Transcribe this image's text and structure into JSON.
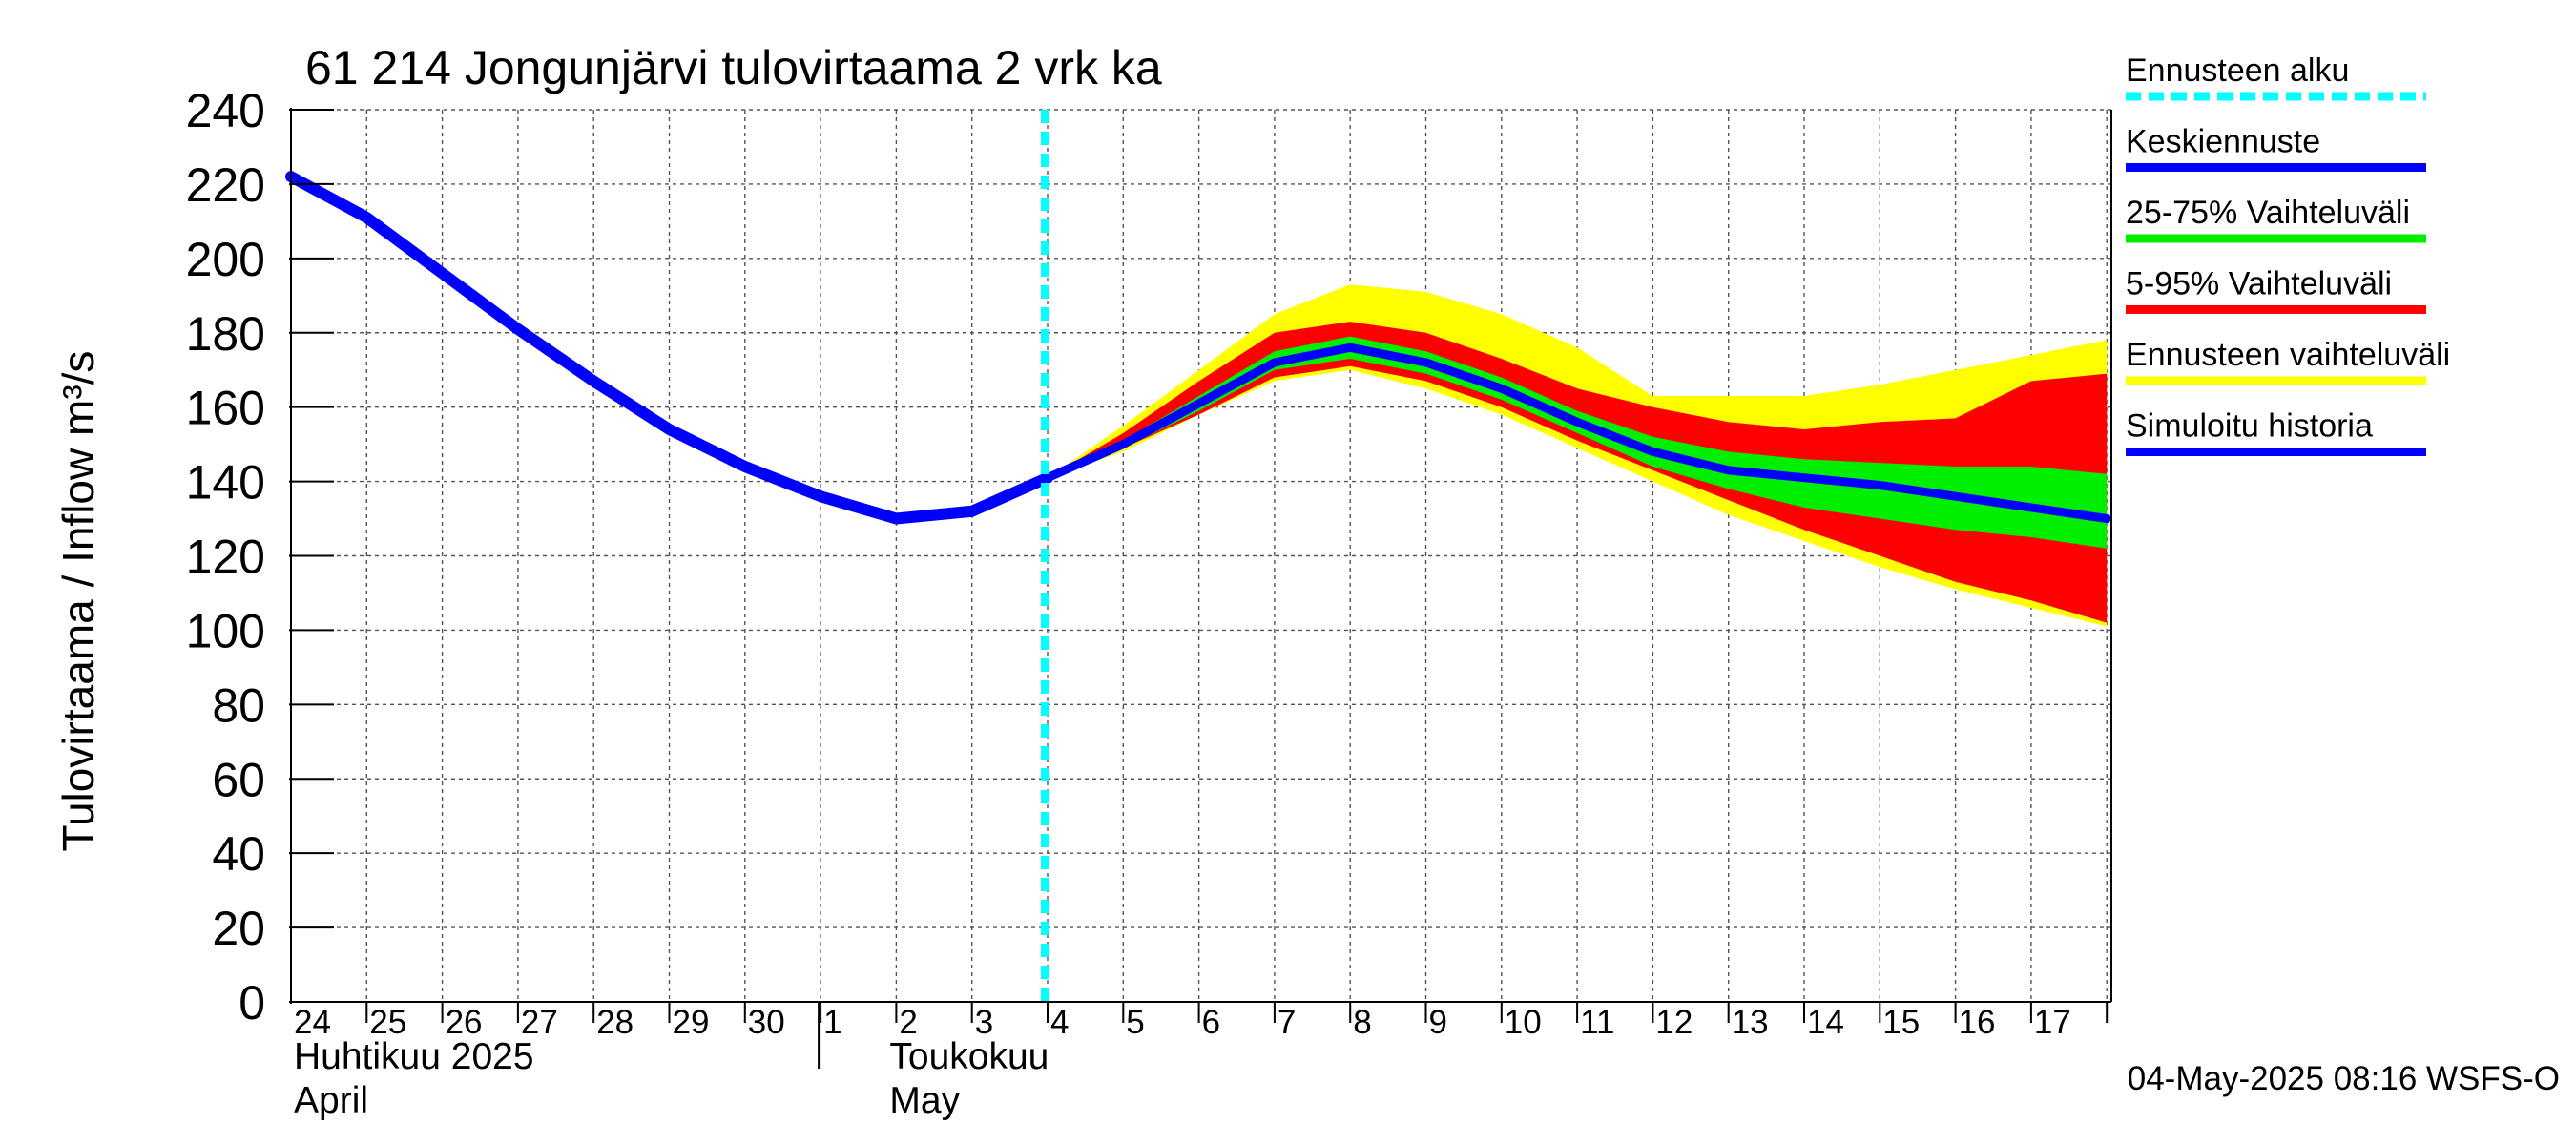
{
  "chart_data": {
    "type": "area",
    "title": "61 214 Jongunjärvi tulovirtaama 2 vrk ka",
    "ylabel": "Tulovirtaama / Inflow    m³/s",
    "xlabel": "",
    "ylim": [
      0,
      240
    ],
    "yticks": [
      0,
      20,
      40,
      60,
      80,
      100,
      120,
      140,
      160,
      180,
      200,
      220,
      240
    ],
    "grid": true,
    "legend_position": "right",
    "x_day_labels": [
      "24",
      "25",
      "26",
      "27",
      "28",
      "29",
      "30",
      "1",
      "2",
      "3",
      "4",
      "5",
      "6",
      "7",
      "8",
      "9",
      "10",
      "11",
      "12",
      "13",
      "14",
      "15",
      "16",
      "17"
    ],
    "month_labels": [
      {
        "fi": "Huhtikuu  2025",
        "en": "April"
      },
      {
        "fi": "Toukokuu",
        "en": "May"
      }
    ],
    "forecast_start": "2025-05-04",
    "series": [
      {
        "name": "Simuloitu historia",
        "color": "#0000ff",
        "x": [
          "2025-04-24",
          "2025-04-25",
          "2025-04-26",
          "2025-04-27",
          "2025-04-28",
          "2025-04-29",
          "2025-04-30",
          "2025-05-01",
          "2025-05-02",
          "2025-05-03",
          "2025-05-04"
        ],
        "y": [
          222,
          211,
          196,
          181,
          167,
          154,
          144,
          136,
          130,
          132,
          141
        ]
      },
      {
        "name": "Keskiennuste",
        "color": "#0000ff",
        "x": [
          "2025-05-04",
          "2025-05-05",
          "2025-05-06",
          "2025-05-07",
          "2025-05-08",
          "2025-05-09",
          "2025-05-10",
          "2025-05-11",
          "2025-05-12",
          "2025-05-13",
          "2025-05-14",
          "2025-05-15",
          "2025-05-16",
          "2025-05-17",
          "2025-05-18"
        ],
        "y": [
          141,
          150,
          161,
          172,
          176,
          172,
          165,
          156,
          148,
          143,
          141,
          139,
          136,
          133,
          130
        ]
      },
      {
        "name": "25-75% Vaihteluväli",
        "color": "#00ee00",
        "x": [
          "2025-05-04",
          "2025-05-05",
          "2025-05-06",
          "2025-05-07",
          "2025-05-08",
          "2025-05-09",
          "2025-05-10",
          "2025-05-11",
          "2025-05-12",
          "2025-05-13",
          "2025-05-14",
          "2025-05-15",
          "2025-05-16",
          "2025-05-17",
          "2025-05-18"
        ],
        "upper": [
          141,
          151,
          163,
          175,
          179,
          175,
          168,
          159,
          152,
          148,
          146,
          145,
          144,
          144,
          142
        ],
        "lower": [
          141,
          149,
          159,
          170,
          173,
          169,
          162,
          153,
          144,
          138,
          133,
          130,
          127,
          125,
          122
        ]
      },
      {
        "name": "5-95% Vaihteluväli",
        "color": "#ff0000",
        "x": [
          "2025-05-04",
          "2025-05-05",
          "2025-05-06",
          "2025-05-07",
          "2025-05-08",
          "2025-05-09",
          "2025-05-10",
          "2025-05-11",
          "2025-05-12",
          "2025-05-13",
          "2025-05-14",
          "2025-05-15",
          "2025-05-16",
          "2025-05-17",
          "2025-05-18"
        ],
        "upper": [
          141,
          153,
          167,
          180,
          183,
          180,
          173,
          165,
          160,
          156,
          154,
          156,
          157,
          167,
          169
        ],
        "lower": [
          141,
          149,
          158,
          168,
          171,
          167,
          160,
          151,
          143,
          135,
          127,
          120,
          113,
          108,
          102
        ]
      },
      {
        "name": "Ennusteen vaihteluväli",
        "color": "#ffff00",
        "x": [
          "2025-05-04",
          "2025-05-05",
          "2025-05-06",
          "2025-05-07",
          "2025-05-08",
          "2025-05-09",
          "2025-05-10",
          "2025-05-11",
          "2025-05-12",
          "2025-05-13",
          "2025-05-14",
          "2025-05-15",
          "2025-05-16",
          "2025-05-17",
          "2025-05-18"
        ],
        "upper": [
          141,
          155,
          170,
          185,
          193,
          191,
          185,
          176,
          163,
          163,
          163,
          166,
          170,
          174,
          178
        ],
        "lower": [
          141,
          148,
          158,
          167,
          170,
          165,
          158,
          149,
          140,
          131,
          124,
          117,
          111,
          106,
          101
        ]
      }
    ]
  },
  "legend": [
    {
      "label": "Ennusteen alku",
      "color": "#00ffff",
      "style": "dashed"
    },
    {
      "label": "Keskiennuste",
      "color": "#0000ff",
      "style": "solid"
    },
    {
      "label": "25-75% Vaihteluväli",
      "color": "#00ee00",
      "style": "solid"
    },
    {
      "label": "5-95% Vaihteluväli",
      "color": "#ff0000",
      "style": "solid"
    },
    {
      "label": "Ennusteen vaihteluväli",
      "color": "#ffff00",
      "style": "solid"
    },
    {
      "label": "Simuloitu historia",
      "color": "#0000ff",
      "style": "solid"
    }
  ],
  "footer": "04-May-2025 08:16 WSFS-O"
}
